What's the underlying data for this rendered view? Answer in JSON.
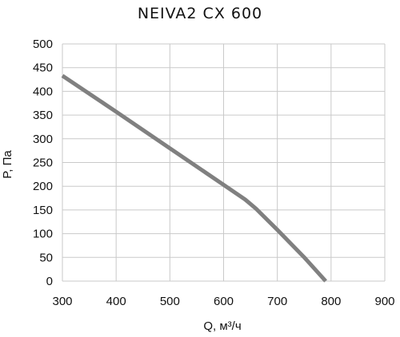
{
  "chart_data": {
    "type": "line",
    "title": "NEIVA2 CX 600",
    "xlabel": "Q, м³/ч",
    "ylabel": "P, Па",
    "xlim": [
      300,
      900
    ],
    "ylim": [
      0,
      500
    ],
    "xticks": [
      300,
      400,
      500,
      600,
      700,
      800,
      900
    ],
    "yticks": [
      0,
      50,
      100,
      150,
      200,
      250,
      300,
      350,
      400,
      450,
      500
    ],
    "grid": true,
    "series": [
      {
        "color": "#808080",
        "x": [
          300,
          400,
          500,
          600,
          640,
          660,
          700,
          750,
          790
        ],
        "y": [
          433,
          357,
          280,
          203,
          172,
          153,
          108,
          50,
          0
        ]
      }
    ]
  }
}
